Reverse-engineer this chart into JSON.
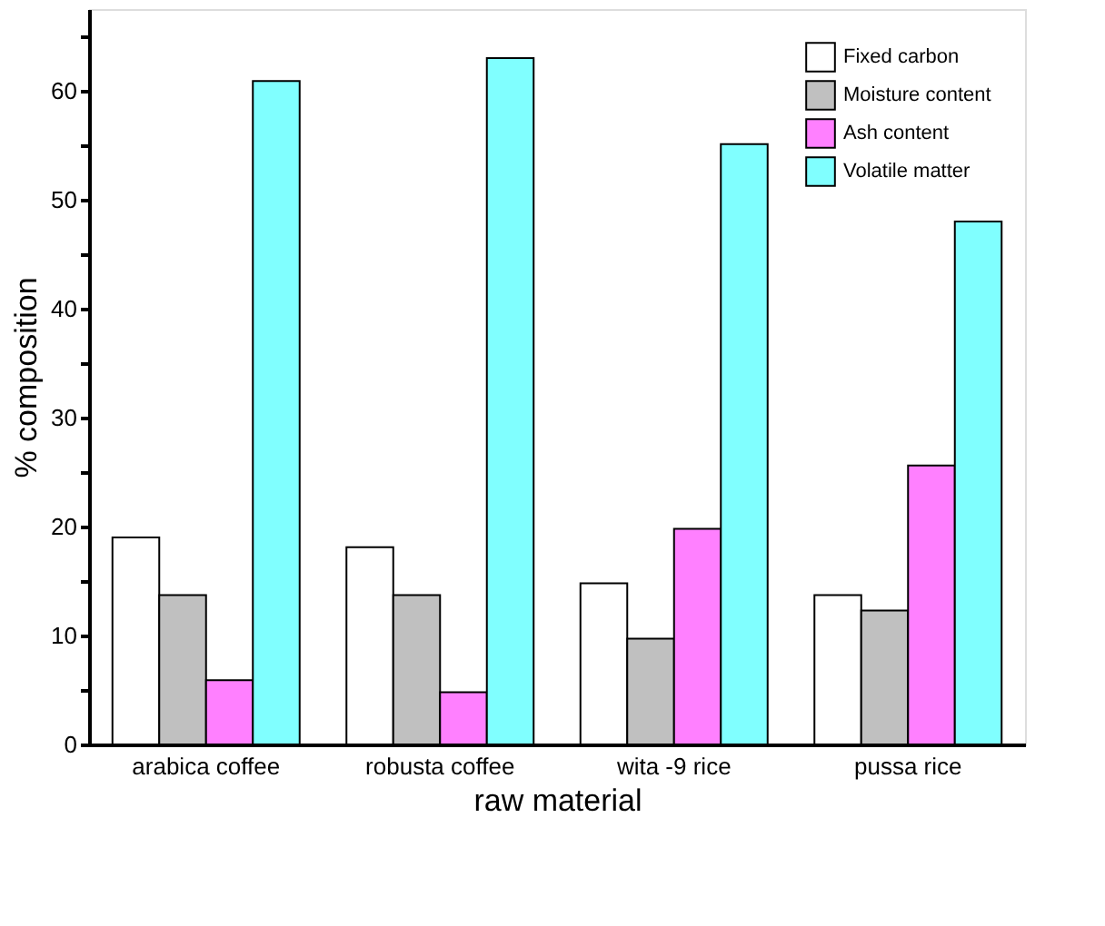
{
  "chart_data": {
    "type": "bar",
    "xlabel": "raw material",
    "ylabel": "% composition",
    "categories": [
      "arabica coffee",
      "robusta coffee",
      "wita -9 rice",
      "pussa rice"
    ],
    "series": [
      {
        "name": "Fixed carbon",
        "color": "#ffffff",
        "values": [
          19.0,
          18.1,
          14.8,
          13.7
        ]
      },
      {
        "name": "Moisture content",
        "color": "#c0c0c0",
        "values": [
          13.7,
          13.7,
          9.7,
          12.3
        ]
      },
      {
        "name": "Ash content",
        "color": "#ff80ff",
        "values": [
          5.9,
          4.8,
          19.8,
          25.6
        ]
      },
      {
        "name": "Volatile matter",
        "color": "#80ffff",
        "values": [
          60.9,
          63.0,
          55.1,
          48.0
        ]
      }
    ],
    "ylim": [
      0,
      67.5
    ],
    "yticks": [
      0,
      {
        "value": 5,
        "label": null
      },
      10,
      {
        "value": 15,
        "label": null
      },
      20,
      {
        "value": 25,
        "label": null
      },
      30,
      {
        "value": 35,
        "label": null
      },
      40,
      {
        "value": 45,
        "label": null
      },
      50,
      {
        "value": 55,
        "label": null
      },
      60,
      {
        "value": 65,
        "label": null
      }
    ],
    "grid": false,
    "legend": "top right"
  }
}
